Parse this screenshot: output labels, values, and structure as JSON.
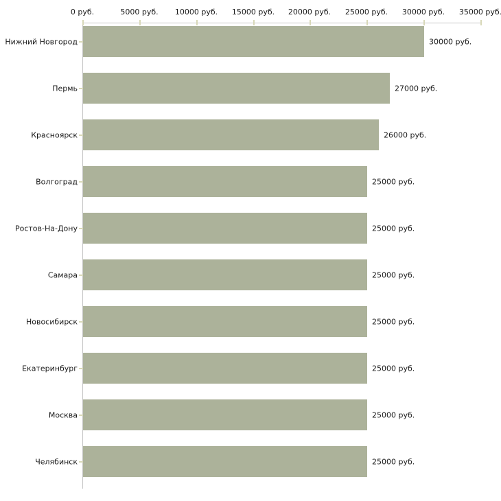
{
  "chart_data": {
    "type": "bar",
    "orientation": "horizontal",
    "title": "",
    "xlabel": "",
    "ylabel": "",
    "unit": "руб.",
    "categories": [
      "Нижний Новгород",
      "Пермь",
      "Красноярск",
      "Волгоград",
      "Ростов-На-Дону",
      "Самара",
      "Новосибирск",
      "Екатеринбург",
      "Москва",
      "Челябинск"
    ],
    "values": [
      30000,
      27000,
      26000,
      25000,
      25000,
      25000,
      25000,
      25000,
      25000,
      25000
    ],
    "value_labels": [
      "30000 руб.",
      "27000 руб.",
      "26000 руб.",
      "25000 руб.",
      "25000 руб.",
      "25000 руб.",
      "25000 руб.",
      "25000 руб.",
      "25000 руб.",
      "25000 руб."
    ],
    "xlim": [
      0,
      35000
    ],
    "x_ticks": [
      0,
      5000,
      10000,
      15000,
      20000,
      25000,
      30000,
      35000
    ],
    "x_tick_labels": [
      "0 руб.",
      "5000 руб.",
      "10000 руб.",
      "15000 руб.",
      "20000 руб.",
      "25000 руб.",
      "30000 руб.",
      "35000 руб."
    ],
    "legend": false,
    "grid": false,
    "axis_position": "top",
    "colors": {
      "bar": "#acb29a",
      "axis_line": "#c6c6c6",
      "tick_mark": "#d8d8b8",
      "text": "#1a1a1a",
      "background": "#ffffff"
    }
  }
}
